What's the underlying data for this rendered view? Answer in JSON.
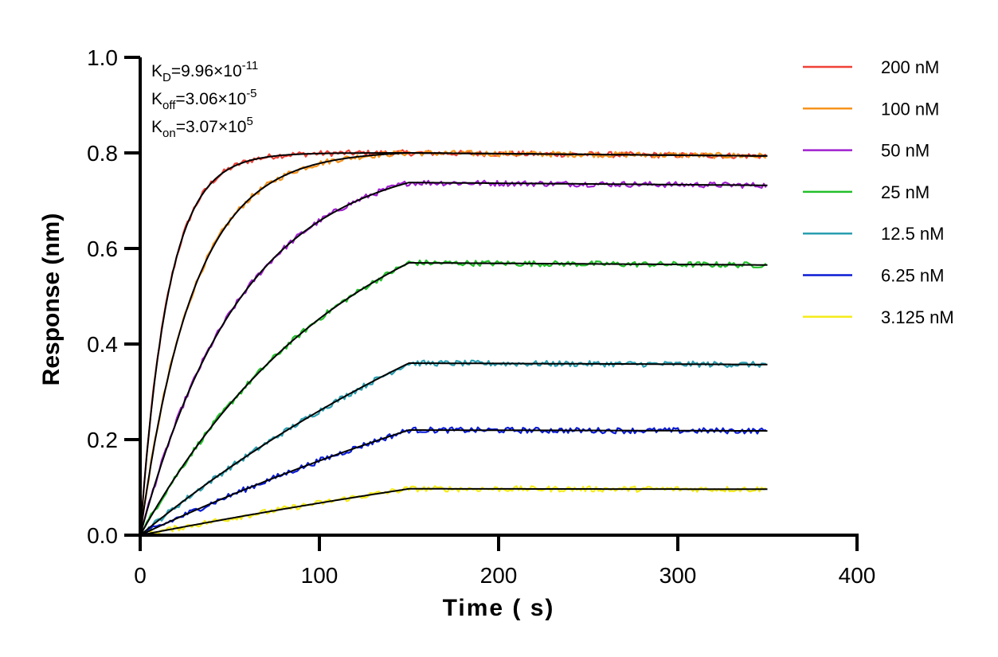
{
  "chart_data": {
    "type": "line",
    "title": "",
    "xlabel": "Time ( s)",
    "ylabel": "Response (nm)",
    "xlim": [
      0,
      400
    ],
    "ylim": [
      0,
      1.0
    ],
    "xticks": [
      0,
      100,
      200,
      300,
      400
    ],
    "xtick_labels": [
      "0",
      "100",
      "200",
      "300",
      "400"
    ],
    "yticks": [
      0.0,
      0.2,
      0.4,
      0.6,
      0.8,
      1.0
    ],
    "ytick_labels": [
      "0.0",
      "0.2",
      "0.4",
      "0.6",
      "0.8",
      "1.0"
    ],
    "grid": false,
    "legend_position": "right",
    "association_end_s": 150,
    "end_time_s": 350,
    "kinetics": {
      "kd_label": "K",
      "kd_sub": "D",
      "kd_value": "=9.96×10",
      "kd_exp": "-11",
      "koff_label": "K",
      "koff_sub": "off",
      "koff_value": "=3.06×10",
      "koff_exp": "-5",
      "kon_label": "K",
      "kon_sub": "on",
      "kon_value": "=3.07×10",
      "kon_exp": "5"
    },
    "fit_color": "#000000",
    "series": [
      {
        "name": "200 nM",
        "color": "#ef4136",
        "plateau": 0.8,
        "rate": 0.064
      },
      {
        "name": "100 nM",
        "color": "#f7941d",
        "plateau": 0.8,
        "rate": 0.034
      },
      {
        "name": "50 nM",
        "color": "#a020d0",
        "plateau": 0.738,
        "rate": 0.0175
      },
      {
        "name": "25 nM",
        "color": "#22c02a",
        "plateau": 0.57,
        "rate": 0.0085
      },
      {
        "name": "12.5 nM",
        "color": "#2a9fb0",
        "plateau": 0.36,
        "rate": 0.0035
      },
      {
        "name": "6.25 nM",
        "color": "#0b1cd6",
        "plateau": 0.22,
        "rate": 0.0025
      },
      {
        "name": "3.125 nM",
        "color": "#f5ec1b",
        "plateau": 0.097,
        "rate": 0.0016
      }
    ]
  }
}
